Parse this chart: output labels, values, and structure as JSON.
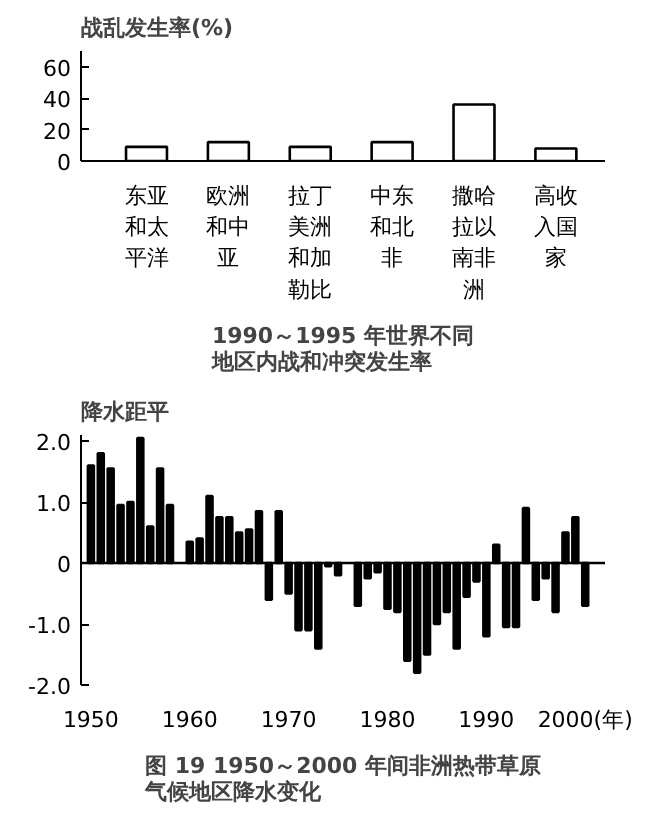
{
  "chart_data": [
    {
      "type": "bar",
      "title": "1990～1995 年世界不同地区内战和冲突发生率",
      "ylabel": "战乱发生率(%)",
      "categories": [
        "东亚和太平洋",
        "欧洲和中亚",
        "拉丁美洲和加勒比",
        "中东和北非",
        "撒哈拉以南非洲",
        "高收入国家"
      ],
      "values": [
        9,
        12,
        9,
        12,
        36,
        8
      ],
      "color": "#ffffff",
      "ylim": [
        0,
        70
      ],
      "yticks": [
        0,
        20,
        40,
        60
      ]
    },
    {
      "type": "bar",
      "title": "图 19 1950～2000 年间非洲热带草原气候地区降水变化",
      "ylabel": "降水距平",
      "x": [
        1950,
        1951,
        1952,
        1953,
        1954,
        1955,
        1956,
        1957,
        1958,
        1959,
        1960,
        1961,
        1962,
        1963,
        1964,
        1965,
        1966,
        1967,
        1968,
        1969,
        1970,
        1971,
        1972,
        1973,
        1974,
        1975,
        1976,
        1977,
        1978,
        1979,
        1980,
        1981,
        1982,
        1983,
        1984,
        1985,
        1986,
        1987,
        1988,
        1989,
        1990,
        1991,
        1992,
        1993,
        1994,
        1995,
        1996,
        1997,
        1998,
        1999,
        2000
      ],
      "values": [
        1.6,
        1.8,
        1.55,
        0.95,
        1.0,
        2.05,
        0.6,
        1.55,
        0.95,
        null,
        0.35,
        0.4,
        1.1,
        0.75,
        0.75,
        0.5,
        0.55,
        0.85,
        -0.6,
        0.85,
        -0.5,
        -1.1,
        -1.1,
        -1.4,
        -0.05,
        -0.2,
        null,
        -0.7,
        -0.25,
        -0.15,
        -0.75,
        -0.8,
        -1.6,
        -1.8,
        -1.5,
        -1.0,
        -0.8,
        -1.4,
        -0.55,
        -0.3,
        -1.2,
        0.3,
        -1.05,
        -1.05,
        0.9,
        -0.6,
        -0.25,
        -0.8,
        0.5,
        0.75,
        -0.7
      ],
      "color": "#000000",
      "xlim": [
        1949,
        2002
      ],
      "xticks": [
        1950,
        1960,
        1970,
        1980,
        1990,
        {
          "value": 2000,
          "label": "2000(年)"
        }
      ],
      "ylim": [
        -2.0,
        2.1
      ],
      "yticks": [
        {
          "value": -2,
          "label": "-2.0"
        },
        {
          "value": -1,
          "label": "-1.0"
        },
        0,
        {
          "value": 1,
          "label": "1.0"
        },
        {
          "value": 2,
          "label": "2.0"
        }
      ],
      "ref_lines": [
        {
          "axis": "y",
          "value": 0,
          "color": "#000000"
        }
      ],
      "line_style": "solid"
    }
  ]
}
